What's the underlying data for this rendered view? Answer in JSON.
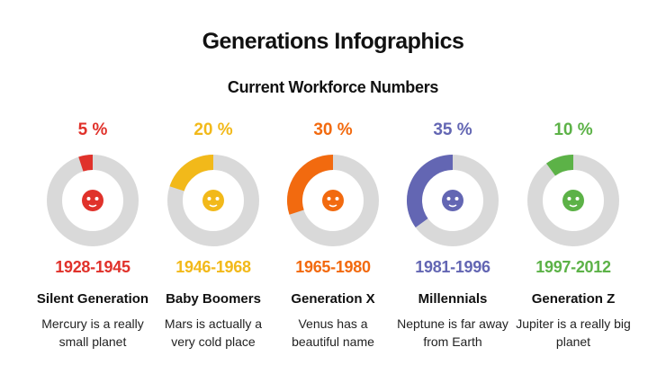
{
  "title": "Generations Infographics",
  "subtitle": "Current Workforce Numbers",
  "chart_data": [
    {
      "type": "donut",
      "values": [
        5
      ],
      "value_labels": [
        "5 %"
      ],
      "color": "#e0322b",
      "years": "1928-1945",
      "name": "Silent Generation",
      "description": "Mercury is a really small planet"
    },
    {
      "type": "donut",
      "values": [
        20
      ],
      "value_labels": [
        "20 %"
      ],
      "color": "#f2b91a",
      "years": "1946-1968",
      "name": "Baby Boomers",
      "description": "Mars is actually a very cold place"
    },
    {
      "type": "donut",
      "values": [
        30
      ],
      "value_labels": [
        "30 %"
      ],
      "color": "#f26a0f",
      "years": "1965-1980",
      "name": "Generation X",
      "description": "Venus has a beautiful name"
    },
    {
      "type": "donut",
      "values": [
        35
      ],
      "value_labels": [
        "35 %"
      ],
      "color": "#6366b3",
      "years": "1981-1996",
      "name": "Millennials",
      "description": "Neptune is far away from Earth"
    },
    {
      "type": "donut",
      "values": [
        10
      ],
      "value_labels": [
        "10 %"
      ],
      "color": "#5cb247",
      "years": "1997-2012",
      "name": "Generation Z",
      "description": "Jupiter is a really big planet"
    }
  ]
}
